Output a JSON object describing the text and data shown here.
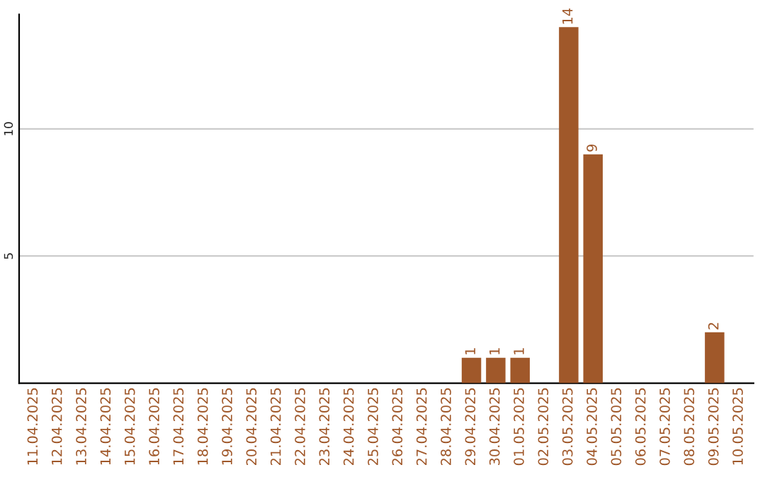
{
  "chart_data": {
    "type": "bar",
    "categories": [
      "11.04.2025",
      "12.04.2025",
      "13.04.2025",
      "14.04.2025",
      "15.04.2025",
      "16.04.2025",
      "17.04.2025",
      "18.04.2025",
      "19.04.2025",
      "20.04.2025",
      "21.04.2025",
      "22.04.2025",
      "23.04.2025",
      "24.04.2025",
      "25.04.2025",
      "26.04.2025",
      "27.04.2025",
      "28.04.2025",
      "29.04.2025",
      "30.04.2025",
      "01.05.2025",
      "02.05.2025",
      "03.05.2025",
      "04.05.2025",
      "05.05.2025",
      "06.05.2025",
      "07.05.2025",
      "08.05.2025",
      "09.05.2025",
      "10.05.2025"
    ],
    "values": [
      0,
      0,
      0,
      0,
      0,
      0,
      0,
      0,
      0,
      0,
      0,
      0,
      0,
      0,
      0,
      0,
      0,
      0,
      1,
      1,
      1,
      0,
      14,
      9,
      0,
      0,
      0,
      0,
      2,
      0
    ],
    "value_labels": [
      null,
      null,
      null,
      null,
      null,
      null,
      null,
      null,
      null,
      null,
      null,
      null,
      null,
      null,
      null,
      null,
      null,
      null,
      "1",
      "1",
      "1",
      null,
      "14",
      "9",
      null,
      null,
      null,
      null,
      "2",
      null
    ],
    "color": "#a0582a",
    "ylim": [
      0,
      14.5
    ],
    "yticks": [
      5,
      10
    ],
    "grid": "y",
    "legend": false
  }
}
